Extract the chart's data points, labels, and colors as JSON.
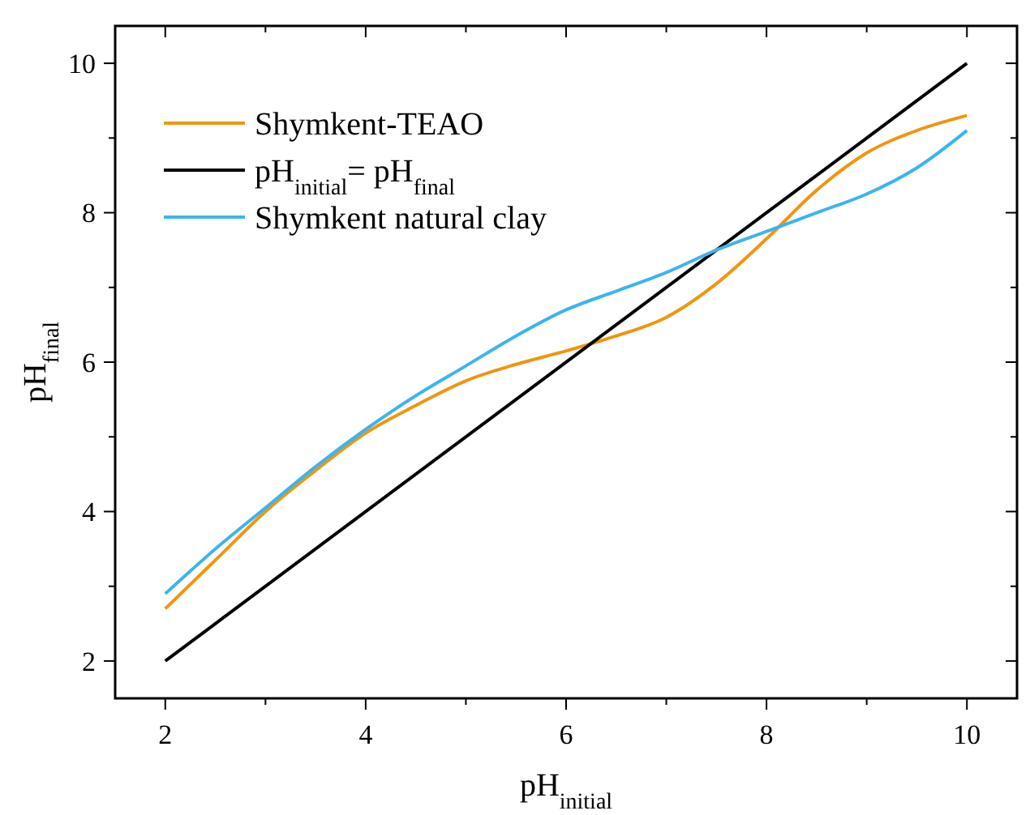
{
  "chart_data": {
    "type": "line",
    "xlabel": "pH$_{initial}$",
    "ylabel": "pH$_{final}$",
    "xlim": [
      1.5,
      10.5
    ],
    "ylim": [
      1.5,
      10.5
    ],
    "xticks": [
      2,
      {
        "value": 3,
        "label": null
      },
      4,
      {
        "value": 5,
        "label": null
      },
      6,
      {
        "value": 7,
        "label": null
      },
      8,
      {
        "value": 9,
        "label": null
      },
      10
    ],
    "yticks": [
      2,
      {
        "value": 3,
        "label": null
      },
      4,
      {
        "value": 5,
        "label": null
      },
      6,
      {
        "value": 7,
        "label": null
      },
      8,
      {
        "value": 9,
        "label": null
      },
      10
    ],
    "x": [
      2,
      2.5,
      3,
      3.5,
      4,
      4.5,
      5,
      5.5,
      6,
      6.5,
      7,
      7.5,
      8,
      8.5,
      9,
      9.5,
      10
    ],
    "series": [
      {
        "name": "Shymkent-TEAO",
        "color": "#f0960f",
        "values": [
          2.7,
          3.35,
          4.0,
          4.55,
          5.05,
          5.42,
          5.75,
          5.97,
          6.15,
          6.35,
          6.6,
          7.05,
          7.65,
          8.3,
          8.8,
          9.1,
          9.3
        ]
      },
      {
        "name": "pH$_{initial}$= pH$_{final}$",
        "color": "#000000",
        "x": [
          2,
          10
        ],
        "values": [
          2,
          10
        ]
      },
      {
        "name": "Shymkent natural clay",
        "color": "#3cb4f0",
        "values": [
          2.9,
          3.5,
          4.05,
          4.6,
          5.1,
          5.55,
          5.95,
          6.35,
          6.7,
          6.95,
          7.2,
          7.5,
          7.75,
          8.0,
          8.25,
          8.6,
          9.1
        ]
      }
    ],
    "legend": "top left",
    "grid": false,
    "marker": "none",
    "line_style": "solid"
  }
}
